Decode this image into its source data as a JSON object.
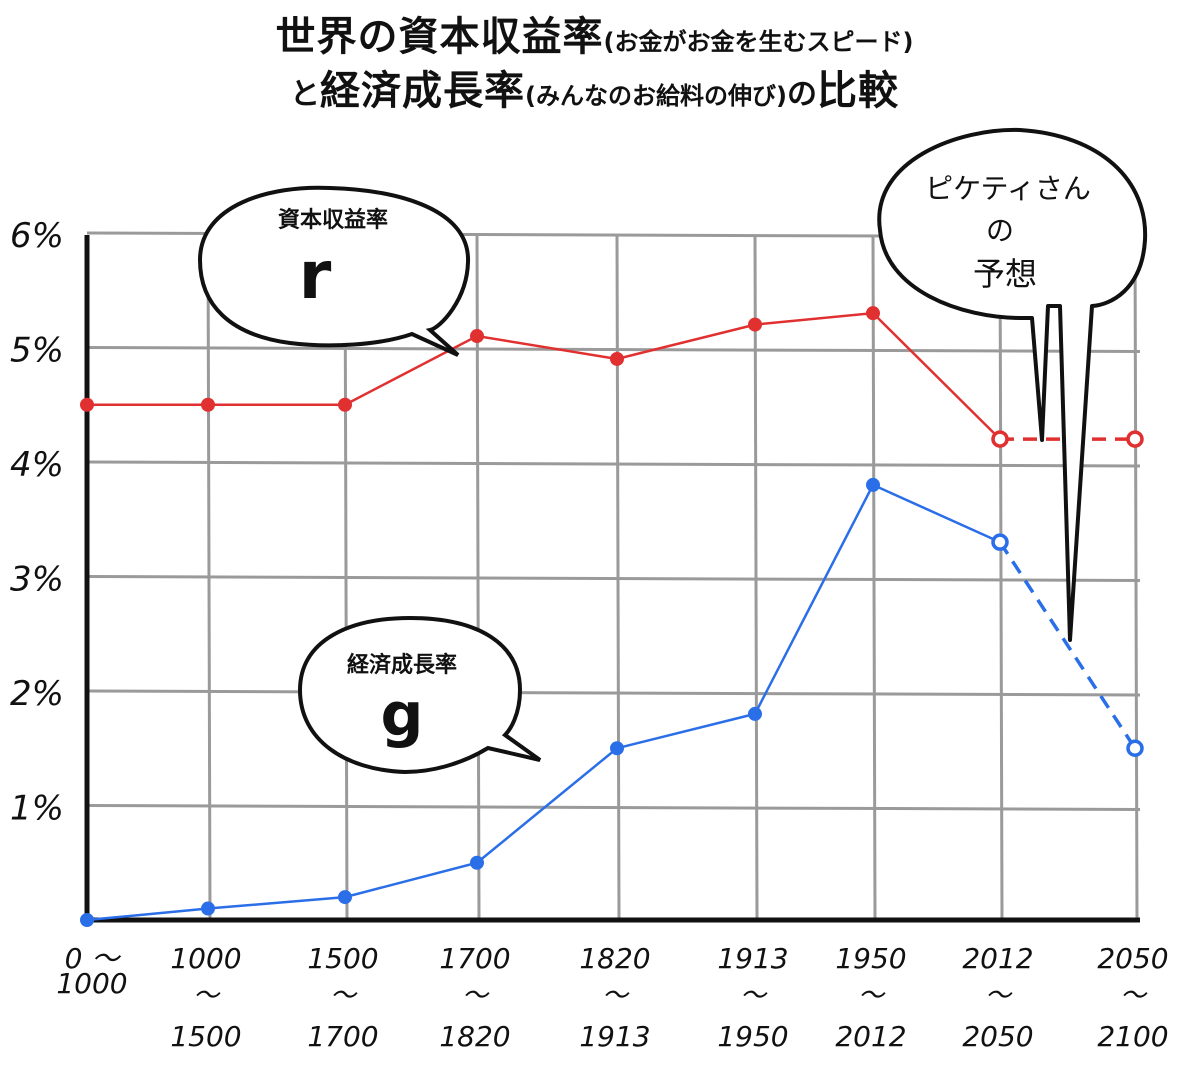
{
  "title": {
    "line1_main": "世界の資本収益率",
    "line1_paren": "(お金がお金を生むスピード)",
    "line2_pre": "と",
    "line2_main": "経済成長率",
    "line2_paren": "(みんなのお給料の伸び)",
    "line2_post": "の",
    "line2_end": "比較"
  },
  "chart_data": {
    "type": "line",
    "title": "世界の資本収益率(お金がお金を生むスピード)と経済成長率(みんなのお給料の伸び)の比較",
    "ylim": [
      0,
      6
    ],
    "y_ticks": [
      "1%",
      "2%",
      "3%",
      "4%",
      "5%",
      "6%"
    ],
    "y_tick_values": [
      1,
      2,
      3,
      4,
      5,
      6
    ],
    "categories": [
      "0〜1000",
      "1000〜1500",
      "1500〜1700",
      "1700〜1820",
      "1820〜1913",
      "1913〜1950",
      "1950〜2012",
      "2012〜2050",
      "2050〜2100"
    ],
    "x_tick_lines": [
      [
        "0 〜",
        "1000"
      ],
      [
        "1000",
        "〜",
        "1500"
      ],
      [
        "1500",
        "〜",
        "1700"
      ],
      [
        "1700",
        "〜",
        "1820"
      ],
      [
        "1820",
        "〜",
        "1913"
      ],
      [
        "1913",
        "〜",
        "1950"
      ],
      [
        "1950",
        "〜",
        "2012"
      ],
      [
        "2012",
        "〜",
        "2050"
      ],
      [
        "2050",
        "〜",
        "2100"
      ]
    ],
    "x_tick_colors": [
      "#111111",
      "#111111",
      "#111111",
      "#111111",
      "#111111",
      "#111111",
      "#111111",
      "#111111",
      "#dd2020"
    ],
    "x_tick_last_line_red_from": 7,
    "grid": true,
    "series": [
      {
        "name": "資本収益率 r",
        "color": "#e03030",
        "points": [
          {
            "x": "0〜1000",
            "y": 4.5
          },
          {
            "x": "1000〜1500",
            "y": 4.5
          },
          {
            "x": "1500〜1700",
            "y": 4.5
          },
          {
            "x": "1700〜1820",
            "y": 5.1
          },
          {
            "x": "1820〜1913",
            "y": 4.9
          },
          {
            "x": "1913〜1950",
            "y": 5.2
          },
          {
            "x": "1950〜2012",
            "y": 5.3
          },
          {
            "x": "2012〜2050",
            "y": 4.2,
            "projected": true
          },
          {
            "x": "2050〜2100",
            "y": 4.2,
            "projected": true
          }
        ]
      },
      {
        "name": "経済成長率 g",
        "color": "#2a6ee8",
        "points": [
          {
            "x": "0〜1000",
            "y": 0.0
          },
          {
            "x": "1000〜1500",
            "y": 0.1
          },
          {
            "x": "1500〜1700",
            "y": 0.2
          },
          {
            "x": "1700〜1820",
            "y": 0.5
          },
          {
            "x": "1820〜1913",
            "y": 1.5
          },
          {
            "x": "1913〜1950",
            "y": 1.8
          },
          {
            "x": "1950〜2012",
            "y": 3.8
          },
          {
            "x": "2012〜2050",
            "y": 3.3,
            "projected": true
          },
          {
            "x": "2050〜2100",
            "y": 1.5,
            "projected": true
          }
        ]
      }
    ],
    "annotations": {
      "r_bubble": {
        "label": "資本収益率",
        "symbol": "r"
      },
      "g_bubble": {
        "label": "経済成長率",
        "symbol": "g"
      },
      "forecast_bubble": {
        "lines": [
          "ピケティさん",
          "の",
          "予想"
        ]
      }
    }
  }
}
